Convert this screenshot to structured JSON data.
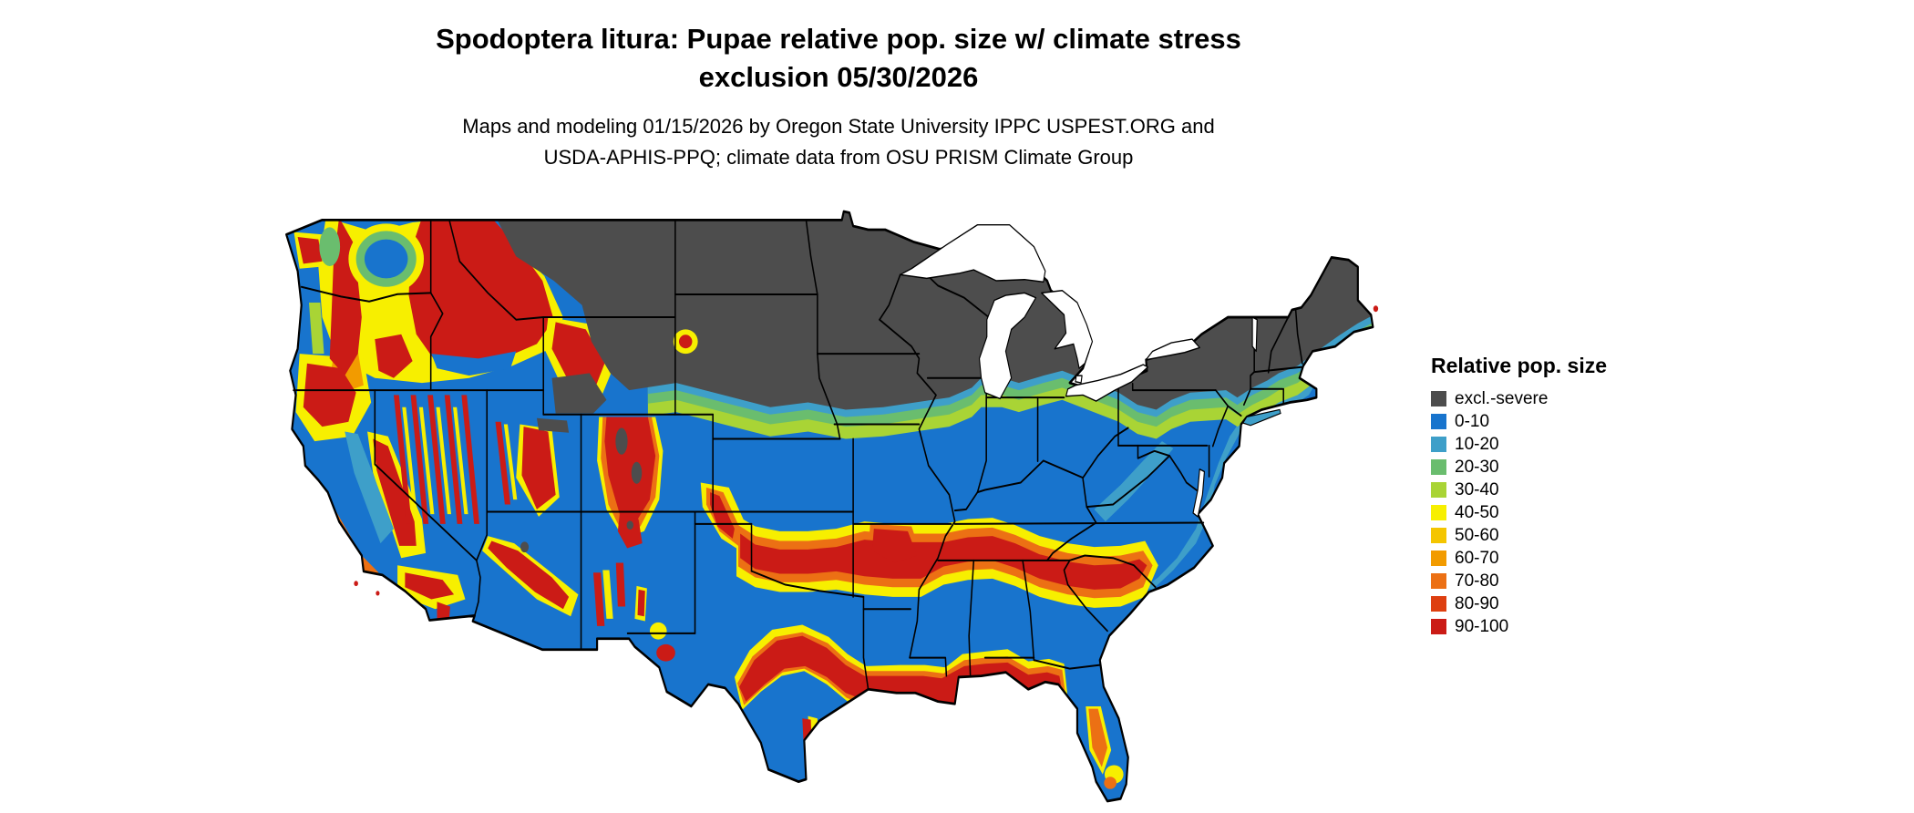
{
  "title": {
    "line1": "Spodoptera litura: Pupae relative pop. size w/ climate stress",
    "line2": "exclusion 05/30/2026"
  },
  "subtitle": {
    "line1": "Maps and modeling 01/15/2026 by Oregon State University IPPC USPEST.ORG and",
    "line2": "USDA-APHIS-PPQ; climate data from OSU PRISM Climate Group"
  },
  "legend": {
    "title": "Relative pop. size",
    "items": [
      {
        "label": "excl.-severe",
        "color": "#4D4D4D"
      },
      {
        "label": "0-10",
        "color": "#1874CD"
      },
      {
        "label": "10-20",
        "color": "#3E9FC9"
      },
      {
        "label": "20-30",
        "color": "#6ABD6E"
      },
      {
        "label": "30-40",
        "color": "#A9D435"
      },
      {
        "label": "40-50",
        "color": "#F7EF00"
      },
      {
        "label": "50-60",
        "color": "#F4C500"
      },
      {
        "label": "60-70",
        "color": "#F29B00"
      },
      {
        "label": "70-80",
        "color": "#EC7014"
      },
      {
        "label": "80-90",
        "color": "#DE3F10"
      },
      {
        "label": "90-100",
        "color": "#CB1B16"
      }
    ]
  },
  "map": {
    "type": "choropleth-raster",
    "region": "Contiguous United States",
    "variable": "Relative pop. size",
    "excluded_class": "excl.-severe",
    "value_range": [
      0,
      100
    ]
  }
}
